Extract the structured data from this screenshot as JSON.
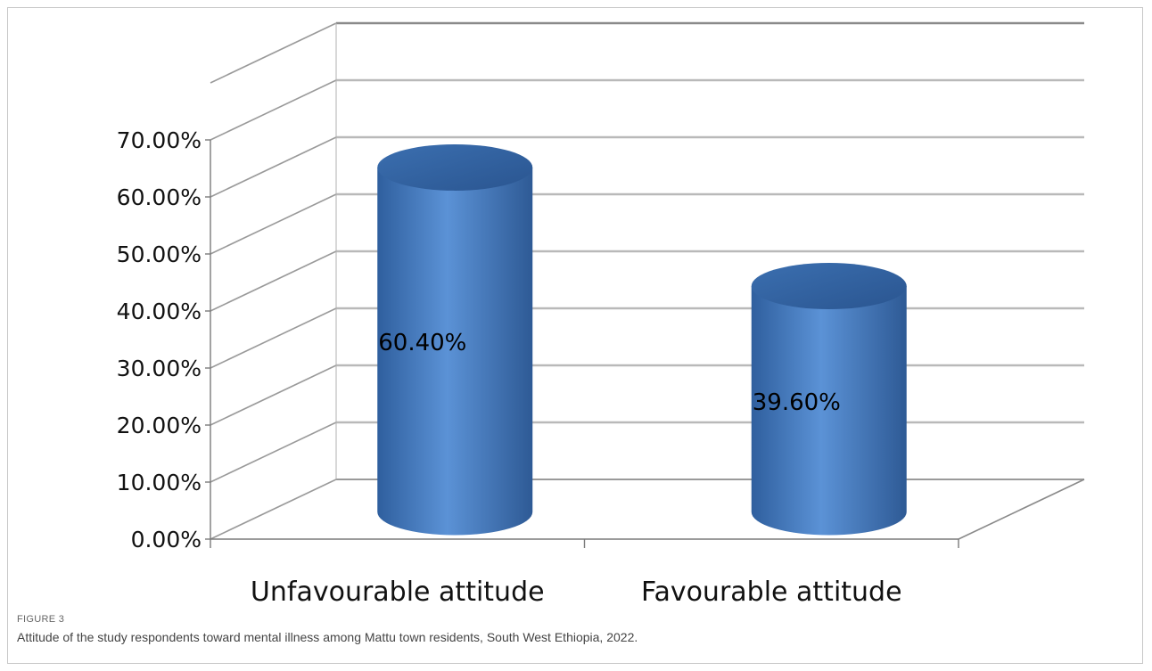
{
  "figure": {
    "label": "FIGURE 3",
    "caption": "Attitude of the study respondents toward mental illness among Mattu town residents, South West Ethiopia, 2022."
  },
  "chart_data": {
    "type": "bar",
    "style": "3d-cylinder",
    "categories": [
      "Unfavourable attitude",
      "Favourable attitude"
    ],
    "values": [
      60.4,
      39.6
    ],
    "data_labels": [
      "60.40%",
      "39.60%"
    ],
    "y_tick_labels": [
      "0.00%",
      "10.00%",
      "20.00%",
      "30.00%",
      "40.00%",
      "50.00%",
      "60.00%",
      "70.00%"
    ],
    "ylim": [
      0,
      70
    ],
    "grid": true,
    "legend": "none",
    "bar_color": "#4a7fc1",
    "title": "",
    "xlabel": "",
    "ylabel": ""
  }
}
